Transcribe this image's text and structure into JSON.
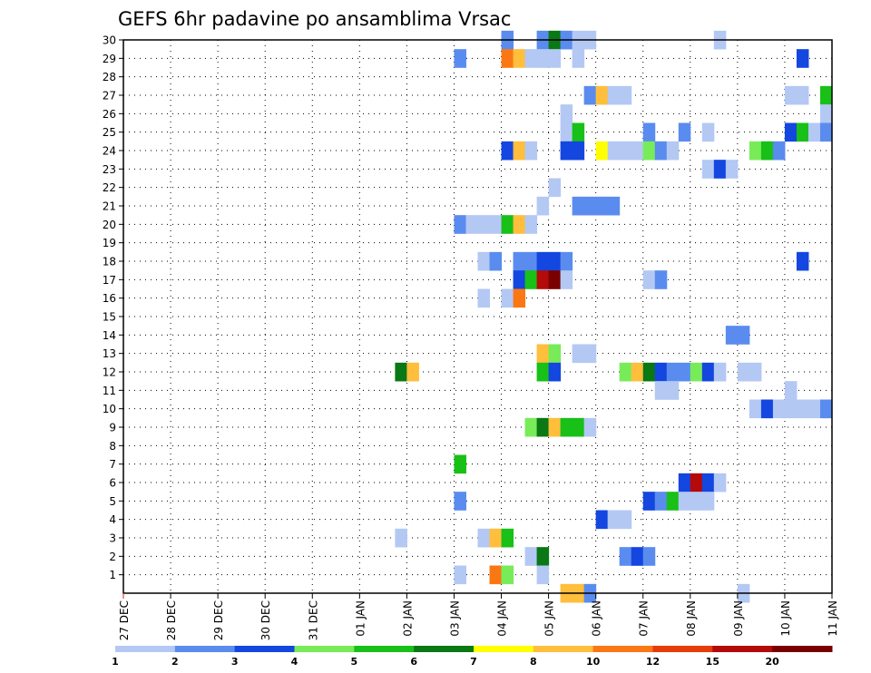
{
  "chart_data": {
    "type": "heatmap",
    "title": "GEFS 6hr padavine po ansamblima Vrsac",
    "xlabel": "",
    "ylabel": "",
    "grid": true,
    "x_tick_labels": [
      "27 DEC",
      "28 DEC",
      "29 DEC",
      "30 DEC",
      "31 DEC",
      "01 JAN",
      "02 JAN",
      "03 JAN",
      "04 JAN",
      "05 JAN",
      "06 JAN",
      "07 JAN",
      "08 JAN",
      "09 JAN",
      "10 JAN",
      "11 JAN"
    ],
    "xlim": [
      0,
      60
    ],
    "ylim": [
      0,
      30
    ],
    "y_ticks": [
      1,
      2,
      3,
      4,
      5,
      6,
      7,
      8,
      9,
      10,
      11,
      12,
      13,
      14,
      15,
      16,
      17,
      18,
      19,
      20,
      21,
      22,
      23,
      24,
      25,
      26,
      27,
      28,
      29,
      30
    ],
    "legend": {
      "placement": "bottom",
      "labels": [
        "1",
        "2",
        "3",
        "4",
        "5",
        "6",
        "7",
        "8",
        "10",
        "12",
        "15",
        "20"
      ],
      "colors": [
        "#b4c8f4",
        "#5a8cf0",
        "#1446e0",
        "#78ec58",
        "#18c018",
        "#0a7814",
        "#ffff00",
        "#ffbe3c",
        "#fa7814",
        "#e63c0a",
        "#b40a0a",
        "#7a0000"
      ]
    },
    "cells": [
      {
        "m": 30,
        "t": 32,
        "v": 2
      },
      {
        "m": 30,
        "t": 35,
        "v": 2
      },
      {
        "m": 30,
        "t": 36,
        "v": 6
      },
      {
        "m": 30,
        "t": 37,
        "v": 2
      },
      {
        "m": 30,
        "t": 38,
        "v": 1
      },
      {
        "m": 30,
        "t": 39,
        "v": 1
      },
      {
        "m": 30,
        "t": 50,
        "v": 1
      },
      {
        "m": 29,
        "t": 28,
        "v": 2
      },
      {
        "m": 29,
        "t": 32,
        "v": 10
      },
      {
        "m": 29,
        "t": 33,
        "v": 8
      },
      {
        "m": 29,
        "t": 34,
        "v": 1
      },
      {
        "m": 29,
        "t": 35,
        "v": 1
      },
      {
        "m": 29,
        "t": 36,
        "v": 1
      },
      {
        "m": 29,
        "t": 38,
        "v": 1
      },
      {
        "m": 29,
        "t": 57,
        "v": 3
      },
      {
        "m": 27,
        "t": 39,
        "v": 2
      },
      {
        "m": 27,
        "t": 40,
        "v": 8
      },
      {
        "m": 27,
        "t": 41,
        "v": 1
      },
      {
        "m": 27,
        "t": 42,
        "v": 1
      },
      {
        "m": 27,
        "t": 56,
        "v": 1
      },
      {
        "m": 27,
        "t": 57,
        "v": 1
      },
      {
        "m": 27,
        "t": 59,
        "v": 5
      },
      {
        "m": 26,
        "t": 37,
        "v": 1
      },
      {
        "m": 26,
        "t": 59,
        "v": 1
      },
      {
        "m": 25,
        "t": 37,
        "v": 1
      },
      {
        "m": 25,
        "t": 38,
        "v": 5
      },
      {
        "m": 25,
        "t": 44,
        "v": 2
      },
      {
        "m": 25,
        "t": 47,
        "v": 2
      },
      {
        "m": 25,
        "t": 49,
        "v": 1
      },
      {
        "m": 25,
        "t": 56,
        "v": 3
      },
      {
        "m": 25,
        "t": 57,
        "v": 5
      },
      {
        "m": 25,
        "t": 58,
        "v": 1
      },
      {
        "m": 25,
        "t": 59,
        "v": 2
      },
      {
        "m": 24,
        "t": 32,
        "v": 3
      },
      {
        "m": 24,
        "t": 33,
        "v": 8
      },
      {
        "m": 24,
        "t": 34,
        "v": 1
      },
      {
        "m": 24,
        "t": 37,
        "v": 3
      },
      {
        "m": 24,
        "t": 38,
        "v": 3
      },
      {
        "m": 24,
        "t": 40,
        "v": 7
      },
      {
        "m": 24,
        "t": 41,
        "v": 1
      },
      {
        "m": 24,
        "t": 42,
        "v": 1
      },
      {
        "m": 24,
        "t": 43,
        "v": 1
      },
      {
        "m": 24,
        "t": 44,
        "v": 4
      },
      {
        "m": 24,
        "t": 45,
        "v": 2
      },
      {
        "m": 24,
        "t": 46,
        "v": 1
      },
      {
        "m": 24,
        "t": 53,
        "v": 4
      },
      {
        "m": 24,
        "t": 54,
        "v": 5
      },
      {
        "m": 24,
        "t": 55,
        "v": 2
      },
      {
        "m": 23,
        "t": 49,
        "v": 1
      },
      {
        "m": 23,
        "t": 50,
        "v": 3
      },
      {
        "m": 23,
        "t": 51,
        "v": 1
      },
      {
        "m": 22,
        "t": 36,
        "v": 1
      },
      {
        "m": 21,
        "t": 35,
        "v": 1
      },
      {
        "m": 21,
        "t": 38,
        "v": 2
      },
      {
        "m": 21,
        "t": 39,
        "v": 2
      },
      {
        "m": 21,
        "t": 40,
        "v": 2
      },
      {
        "m": 21,
        "t": 41,
        "v": 2
      },
      {
        "m": 20,
        "t": 28,
        "v": 2
      },
      {
        "m": 20,
        "t": 29,
        "v": 1
      },
      {
        "m": 20,
        "t": 30,
        "v": 1
      },
      {
        "m": 20,
        "t": 31,
        "v": 1
      },
      {
        "m": 20,
        "t": 32,
        "v": 5
      },
      {
        "m": 20,
        "t": 33,
        "v": 8
      },
      {
        "m": 20,
        "t": 34,
        "v": 1
      },
      {
        "m": 18,
        "t": 30,
        "v": 1
      },
      {
        "m": 18,
        "t": 31,
        "v": 2
      },
      {
        "m": 18,
        "t": 33,
        "v": 2
      },
      {
        "m": 18,
        "t": 34,
        "v": 2
      },
      {
        "m": 18,
        "t": 35,
        "v": 3
      },
      {
        "m": 18,
        "t": 36,
        "v": 3
      },
      {
        "m": 18,
        "t": 37,
        "v": 2
      },
      {
        "m": 18,
        "t": 57,
        "v": 3
      },
      {
        "m": 17,
        "t": 33,
        "v": 3
      },
      {
        "m": 17,
        "t": 34,
        "v": 5
      },
      {
        "m": 17,
        "t": 35,
        "v": 15
      },
      {
        "m": 17,
        "t": 36,
        "v": 20
      },
      {
        "m": 17,
        "t": 37,
        "v": 1
      },
      {
        "m": 17,
        "t": 44,
        "v": 1
      },
      {
        "m": 17,
        "t": 45,
        "v": 2
      },
      {
        "m": 16,
        "t": 30,
        "v": 1
      },
      {
        "m": 16,
        "t": 32,
        "v": 1
      },
      {
        "m": 16,
        "t": 33,
        "v": 10
      },
      {
        "m": 14,
        "t": 51,
        "v": 2
      },
      {
        "m": 14,
        "t": 52,
        "v": 2
      },
      {
        "m": 13,
        "t": 35,
        "v": 8
      },
      {
        "m": 13,
        "t": 36,
        "v": 4
      },
      {
        "m": 13,
        "t": 38,
        "v": 1
      },
      {
        "m": 13,
        "t": 39,
        "v": 1
      },
      {
        "m": 12,
        "t": 23,
        "v": 6
      },
      {
        "m": 12,
        "t": 24,
        "v": 8
      },
      {
        "m": 12,
        "t": 35,
        "v": 5
      },
      {
        "m": 12,
        "t": 36,
        "v": 3
      },
      {
        "m": 12,
        "t": 42,
        "v": 4
      },
      {
        "m": 12,
        "t": 43,
        "v": 8
      },
      {
        "m": 12,
        "t": 44,
        "v": 6
      },
      {
        "m": 12,
        "t": 45,
        "v": 3
      },
      {
        "m": 12,
        "t": 46,
        "v": 2
      },
      {
        "m": 12,
        "t": 47,
        "v": 2
      },
      {
        "m": 12,
        "t": 48,
        "v": 4
      },
      {
        "m": 12,
        "t": 49,
        "v": 3
      },
      {
        "m": 12,
        "t": 50,
        "v": 1
      },
      {
        "m": 12,
        "t": 52,
        "v": 1
      },
      {
        "m": 12,
        "t": 53,
        "v": 1
      },
      {
        "m": 11,
        "t": 45,
        "v": 1
      },
      {
        "m": 11,
        "t": 46,
        "v": 1
      },
      {
        "m": 11,
        "t": 56,
        "v": 1
      },
      {
        "m": 10,
        "t": 53,
        "v": 1
      },
      {
        "m": 10,
        "t": 54,
        "v": 3
      },
      {
        "m": 10,
        "t": 55,
        "v": 1
      },
      {
        "m": 10,
        "t": 56,
        "v": 1
      },
      {
        "m": 10,
        "t": 57,
        "v": 1
      },
      {
        "m": 10,
        "t": 58,
        "v": 1
      },
      {
        "m": 10,
        "t": 59,
        "v": 2
      },
      {
        "m": 9,
        "t": 34,
        "v": 4
      },
      {
        "m": 9,
        "t": 35,
        "v": 6
      },
      {
        "m": 9,
        "t": 36,
        "v": 8
      },
      {
        "m": 9,
        "t": 37,
        "v": 5
      },
      {
        "m": 9,
        "t": 38,
        "v": 5
      },
      {
        "m": 9,
        "t": 39,
        "v": 1
      },
      {
        "m": 7,
        "t": 28,
        "v": 5
      },
      {
        "m": 6,
        "t": 47,
        "v": 3
      },
      {
        "m": 6,
        "t": 48,
        "v": 15
      },
      {
        "m": 6,
        "t": 49,
        "v": 3
      },
      {
        "m": 6,
        "t": 50,
        "v": 1
      },
      {
        "m": 5,
        "t": 28,
        "v": 2
      },
      {
        "m": 5,
        "t": 44,
        "v": 3
      },
      {
        "m": 5,
        "t": 45,
        "v": 2
      },
      {
        "m": 5,
        "t": 46,
        "v": 5
      },
      {
        "m": 5,
        "t": 47,
        "v": 1
      },
      {
        "m": 5,
        "t": 48,
        "v": 1
      },
      {
        "m": 5,
        "t": 49,
        "v": 1
      },
      {
        "m": 4,
        "t": 40,
        "v": 3
      },
      {
        "m": 4,
        "t": 41,
        "v": 1
      },
      {
        "m": 4,
        "t": 42,
        "v": 1
      },
      {
        "m": 3,
        "t": 23,
        "v": 1
      },
      {
        "m": 3,
        "t": 30,
        "v": 1
      },
      {
        "m": 3,
        "t": 31,
        "v": 8
      },
      {
        "m": 3,
        "t": 32,
        "v": 5
      },
      {
        "m": 2,
        "t": 34,
        "v": 1
      },
      {
        "m": 2,
        "t": 35,
        "v": 6
      },
      {
        "m": 2,
        "t": 42,
        "v": 2
      },
      {
        "m": 2,
        "t": 43,
        "v": 3
      },
      {
        "m": 2,
        "t": 44,
        "v": 2
      },
      {
        "m": 1,
        "t": 28,
        "v": 1
      },
      {
        "m": 1,
        "t": 31,
        "v": 10
      },
      {
        "m": 1,
        "t": 32,
        "v": 4
      },
      {
        "m": 1,
        "t": 35,
        "v": 1
      },
      {
        "m": 0,
        "t": 37,
        "v": 8
      },
      {
        "m": 0,
        "t": 38,
        "v": 8
      },
      {
        "m": 0,
        "t": 39,
        "v": 2
      },
      {
        "m": 0,
        "t": 52,
        "v": 1
      }
    ]
  }
}
